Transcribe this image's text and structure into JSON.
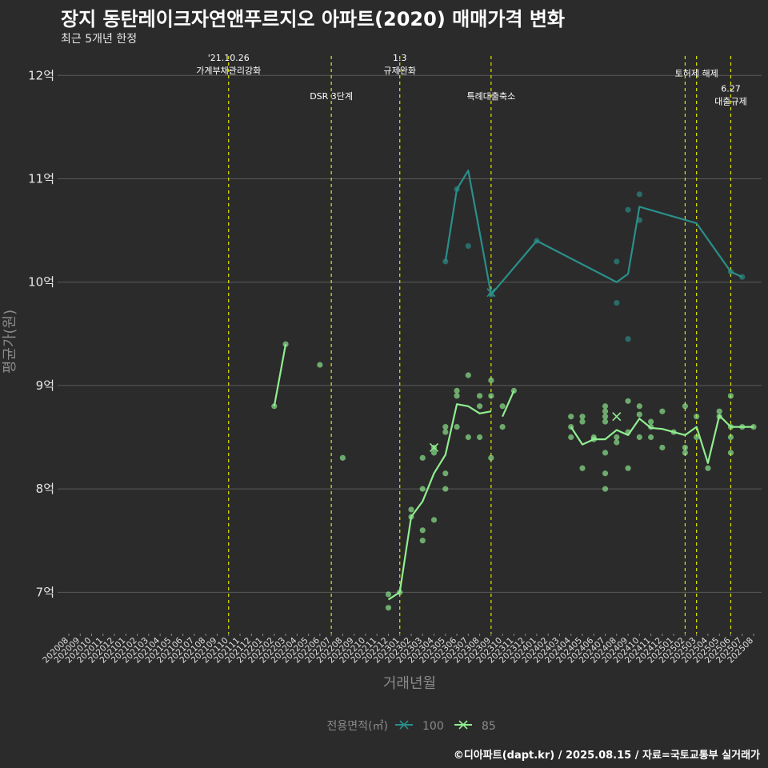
{
  "header": {
    "title": "장지 동탄레이크자연앤푸르지오 아파트(2020) 매매가격 변화",
    "subtitle": "최근 5개년 한정"
  },
  "footer": {
    "credit": "©디아파트(dapt.kr) / 2025.08.15 / 자료=국토교통부 실거래가"
  },
  "colors": {
    "series_100": "#2a8f8a",
    "series_85": "#90ee90",
    "event_line": "#e6e600",
    "background": "#2b2b2b",
    "grid": "#5a5a5a"
  },
  "chart_data": {
    "type": "line",
    "xlabel": "거래년월",
    "ylabel": "평균가(원)",
    "x": [
      "202008",
      "202009",
      "202010",
      "202011",
      "202012",
      "202101",
      "202102",
      "202103",
      "202104",
      "202105",
      "202106",
      "202107",
      "202108",
      "202109",
      "202110",
      "202111",
      "202112",
      "202201",
      "202202",
      "202203",
      "202204",
      "202205",
      "202206",
      "202207",
      "202208",
      "202209",
      "202210",
      "202211",
      "202212",
      "202301",
      "202302",
      "202303",
      "202304",
      "202305",
      "202306",
      "202307",
      "202308",
      "202309",
      "202310",
      "202311",
      "202312",
      "202401",
      "202402",
      "202403",
      "202404",
      "202405",
      "202406",
      "202407",
      "202408",
      "202409",
      "202410",
      "202411",
      "202412",
      "202501",
      "202502",
      "202503",
      "202504",
      "202505",
      "202506",
      "202507",
      "202508"
    ],
    "y_ticks": [
      7,
      8,
      9,
      10,
      11,
      12
    ],
    "y_tick_labels": [
      "7억",
      "8억",
      "9억",
      "10억",
      "11억",
      "12억"
    ],
    "ylim": [
      6.6,
      12.25
    ],
    "grid": true,
    "legend": {
      "title": "전용면적(㎡)",
      "position": "bottom",
      "entries": [
        "100",
        "85"
      ]
    },
    "events": [
      {
        "x": "202110",
        "label": "'21.10.26\n가계부채관리강화",
        "label_y": 12.05
      },
      {
        "x": "202207",
        "label": "DSR 3단계",
        "label_y": 11.8
      },
      {
        "x": "202301",
        "label": "1.3\n규제완화",
        "label_y": 12.05
      },
      {
        "x": "202309",
        "label": "특례대출축소",
        "label_y": 11.8
      },
      {
        "x": "202502",
        "label": "",
        "label_y": 12.05
      },
      {
        "x": "202503",
        "label": "토허제 해제",
        "label_y": 12.02
      },
      {
        "x": "202506",
        "label": "6.27\n대출규제",
        "label_y": 11.75
      }
    ],
    "series": [
      {
        "name": "100",
        "color": "#2a8f8a",
        "line_segments": [
          [
            [
              "202305",
              10.2
            ],
            [
              "202306",
              10.9
            ],
            [
              "202307",
              11.08
            ],
            [
              "202309",
              9.88
            ],
            [
              "202401",
              10.4
            ],
            [
              "202408",
              10.0
            ],
            [
              "202409",
              10.08
            ],
            [
              "202410",
              10.73
            ],
            [
              "202503",
              10.57
            ],
            [
              "202506",
              10.1
            ],
            [
              "202507",
              10.05
            ]
          ]
        ],
        "points": [
          [
            "202305",
            10.2
          ],
          [
            "202306",
            10.9
          ],
          [
            "202307",
            10.35
          ],
          [
            "202309",
            9.88
          ],
          [
            "202401",
            10.4
          ],
          [
            "202408",
            10.2
          ],
          [
            "202408",
            9.8
          ],
          [
            "202409",
            10.7
          ],
          [
            "202409",
            9.45
          ],
          [
            "202410",
            10.85
          ],
          [
            "202410",
            10.6
          ],
          [
            "202506",
            10.1
          ],
          [
            "202507",
            10.05
          ]
        ],
        "crosses": [
          [
            "202309",
            9.9
          ]
        ]
      },
      {
        "name": "85",
        "color": "#90ee90",
        "line_segments": [
          [
            [
              "202202",
              8.8
            ],
            [
              "202203",
              9.4
            ]
          ],
          [
            [
              "202212",
              6.93
            ],
            [
              "202301",
              7.0
            ],
            [
              "202302",
              7.73
            ],
            [
              "202303",
              7.88
            ],
            [
              "202304",
              8.15
            ],
            [
              "202305",
              8.33
            ],
            [
              "202306",
              8.82
            ],
            [
              "202307",
              8.8
            ],
            [
              "202308",
              8.73
            ],
            [
              "202309",
              8.75
            ]
          ],
          [
            [
              "202310",
              8.7
            ],
            [
              "202311",
              8.95
            ]
          ],
          [
            [
              "202404",
              8.6
            ],
            [
              "202405",
              8.43
            ],
            [
              "202406",
              8.48
            ],
            [
              "202407",
              8.48
            ],
            [
              "202408",
              8.57
            ],
            [
              "202409",
              8.52
            ],
            [
              "202410",
              8.68
            ],
            [
              "202411",
              8.59
            ],
            [
              "202412",
              8.58
            ],
            [
              "202501",
              8.55
            ],
            [
              "202502",
              8.52
            ],
            [
              "202503",
              8.6
            ],
            [
              "202504",
              8.25
            ],
            [
              "202505",
              8.71
            ],
            [
              "202506",
              8.6
            ],
            [
              "202507",
              8.6
            ],
            [
              "202508",
              8.6
            ]
          ]
        ],
        "points": [
          [
            "202202",
            8.8
          ],
          [
            "202203",
            9.4
          ],
          [
            "202206",
            9.2
          ],
          [
            "202208",
            8.3
          ],
          [
            "202212",
            6.98
          ],
          [
            "202212",
            6.85
          ],
          [
            "202301",
            7.0
          ],
          [
            "202302",
            7.8
          ],
          [
            "202302",
            7.73
          ],
          [
            "202303",
            8.3
          ],
          [
            "202303",
            8.0
          ],
          [
            "202303",
            7.6
          ],
          [
            "202303",
            7.5
          ],
          [
            "202304",
            8.4
          ],
          [
            "202304",
            8.35
          ],
          [
            "202304",
            7.7
          ],
          [
            "202305",
            8.6
          ],
          [
            "202305",
            8.55
          ],
          [
            "202305",
            8.15
          ],
          [
            "202305",
            8.0
          ],
          [
            "202306",
            8.95
          ],
          [
            "202306",
            8.9
          ],
          [
            "202306",
            8.6
          ],
          [
            "202307",
            9.1
          ],
          [
            "202307",
            8.5
          ],
          [
            "202308",
            8.9
          ],
          [
            "202308",
            8.8
          ],
          [
            "202308",
            8.5
          ],
          [
            "202309",
            9.05
          ],
          [
            "202309",
            8.9
          ],
          [
            "202309",
            8.3
          ],
          [
            "202310",
            8.8
          ],
          [
            "202310",
            8.6
          ],
          [
            "202311",
            8.95
          ],
          [
            "202404",
            8.7
          ],
          [
            "202404",
            8.6
          ],
          [
            "202404",
            8.5
          ],
          [
            "202405",
            8.7
          ],
          [
            "202405",
            8.65
          ],
          [
            "202405",
            8.2
          ],
          [
            "202406",
            8.5
          ],
          [
            "202406",
            8.48
          ],
          [
            "202407",
            8.8
          ],
          [
            "202407",
            8.75
          ],
          [
            "202407",
            8.7
          ],
          [
            "202407",
            8.65
          ],
          [
            "202407",
            8.35
          ],
          [
            "202407",
            8.15
          ],
          [
            "202407",
            8.0
          ],
          [
            "202408",
            8.5
          ],
          [
            "202408",
            8.45
          ],
          [
            "202409",
            8.85
          ],
          [
            "202409",
            8.55
          ],
          [
            "202409",
            8.2
          ],
          [
            "202410",
            8.8
          ],
          [
            "202410",
            8.72
          ],
          [
            "202410",
            8.5
          ],
          [
            "202411",
            8.65
          ],
          [
            "202411",
            8.6
          ],
          [
            "202411",
            8.5
          ],
          [
            "202412",
            8.75
          ],
          [
            "202412",
            8.4
          ],
          [
            "202501",
            8.55
          ],
          [
            "202502",
            8.8
          ],
          [
            "202502",
            8.4
          ],
          [
            "202502",
            8.35
          ],
          [
            "202503",
            8.7
          ],
          [
            "202503",
            8.5
          ],
          [
            "202504",
            8.2
          ],
          [
            "202505",
            8.75
          ],
          [
            "202505",
            8.7
          ],
          [
            "202506",
            8.9
          ],
          [
            "202506",
            8.6
          ],
          [
            "202506",
            8.5
          ],
          [
            "202506",
            8.35
          ],
          [
            "202507",
            8.6
          ],
          [
            "202508",
            8.6
          ]
        ],
        "crosses": [
          [
            "202304",
            8.4
          ],
          [
            "202408",
            8.7
          ]
        ]
      }
    ]
  }
}
